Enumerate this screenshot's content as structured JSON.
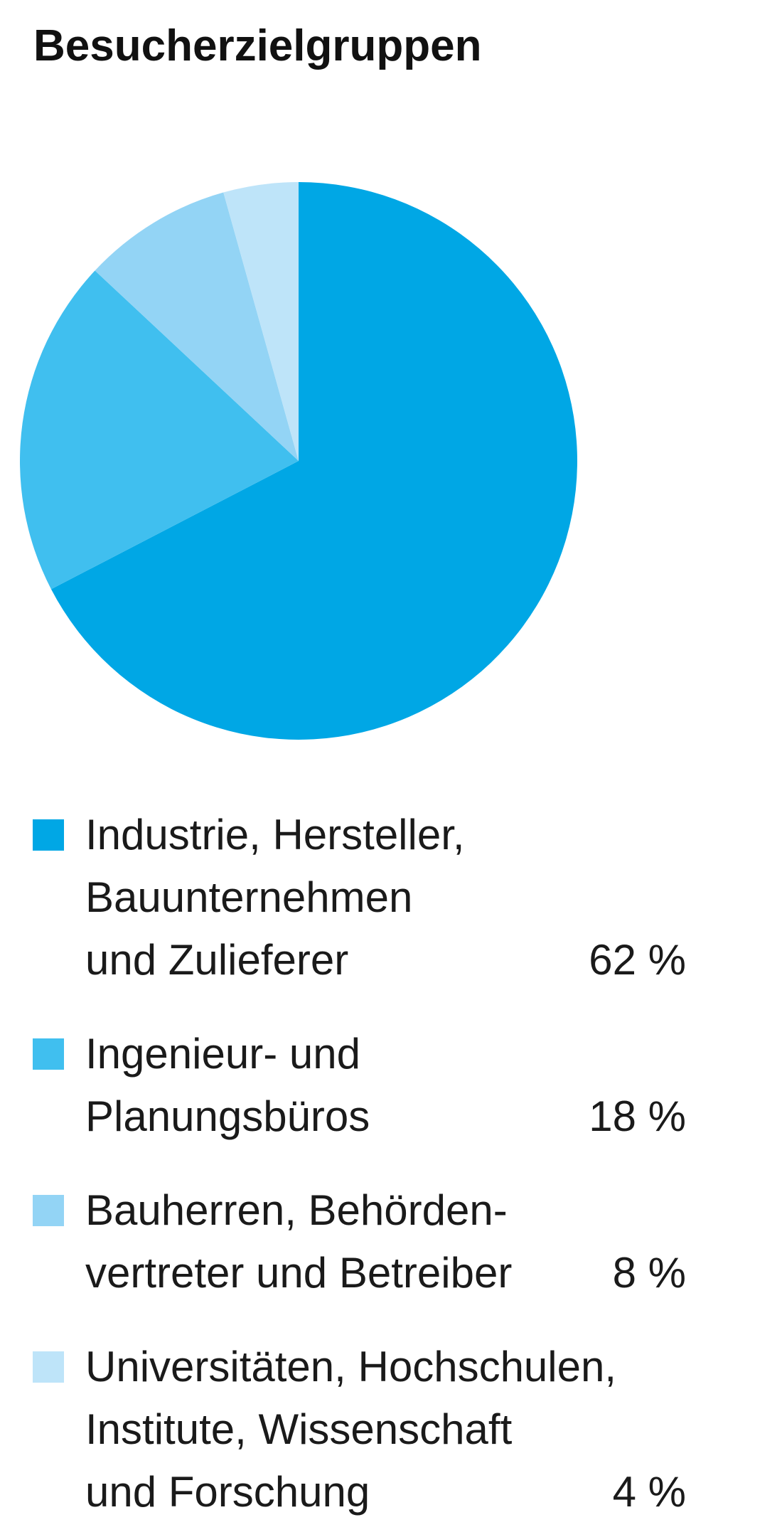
{
  "chart_data": {
    "type": "pie",
    "title": "Besucherzielgruppen",
    "slices": [
      {
        "label_lines": [
          "Industrie, Hersteller,",
          "Bauunternehmen",
          "und Zulieferer"
        ],
        "value": 62,
        "value_label": "62 %",
        "color": "#00a7e5"
      },
      {
        "label_lines": [
          "Ingenieur- und",
          "Planungsbüros"
        ],
        "value": 18,
        "value_label": "18 %",
        "color": "#40bfef"
      },
      {
        "label_lines": [
          "Bauherren, Behörden-",
          "vertreter und Betreiber"
        ],
        "value": 8,
        "value_label": "8 %",
        "color": "#93d4f5"
      },
      {
        "label_lines": [
          "Universitäten, Hochschulen,",
          "Institute, Wissenschaft",
          "und Forschung"
        ],
        "value": 4,
        "value_label": "4 %",
        "color": "#bee4f9"
      }
    ],
    "legend_position": "bottom",
    "direction": "clockwise",
    "start_angle": "top"
  }
}
